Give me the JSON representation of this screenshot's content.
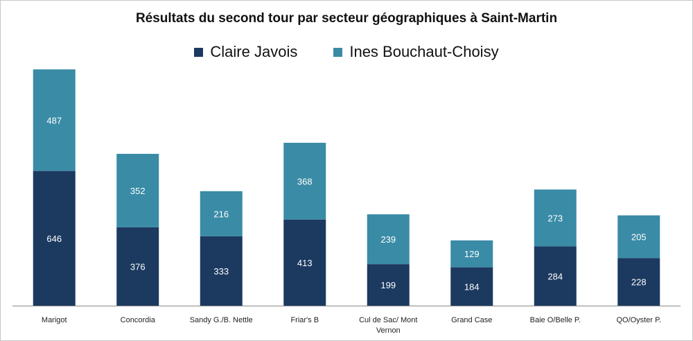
{
  "chart_data": {
    "type": "bar",
    "stacked": true,
    "title": "Résultats du second tour par secteur géographiques à Saint-Martin",
    "xlabel": "",
    "ylabel": "",
    "ylim": [
      0,
      1150
    ],
    "grid": false,
    "legend_position": "top",
    "categories": [
      [
        "Marigot"
      ],
      [
        "Concordia"
      ],
      [
        "Sandy G./B. Nettle"
      ],
      [
        "Friar's B"
      ],
      [
        "Cul de Sac/ Mont",
        "Vernon"
      ],
      [
        "Grand Case"
      ],
      [
        "Baie O/Belle P."
      ],
      [
        "QO/Oyster P."
      ]
    ],
    "series": [
      {
        "name": "Claire Javois",
        "color": "#1c3a60",
        "values": [
          646,
          376,
          333,
          413,
          199,
          184,
          284,
          228
        ]
      },
      {
        "name": "Ines Bouchaut-Choisy",
        "color": "#3a8ba6",
        "values": [
          487,
          352,
          216,
          368,
          239,
          129,
          273,
          205
        ]
      }
    ]
  }
}
